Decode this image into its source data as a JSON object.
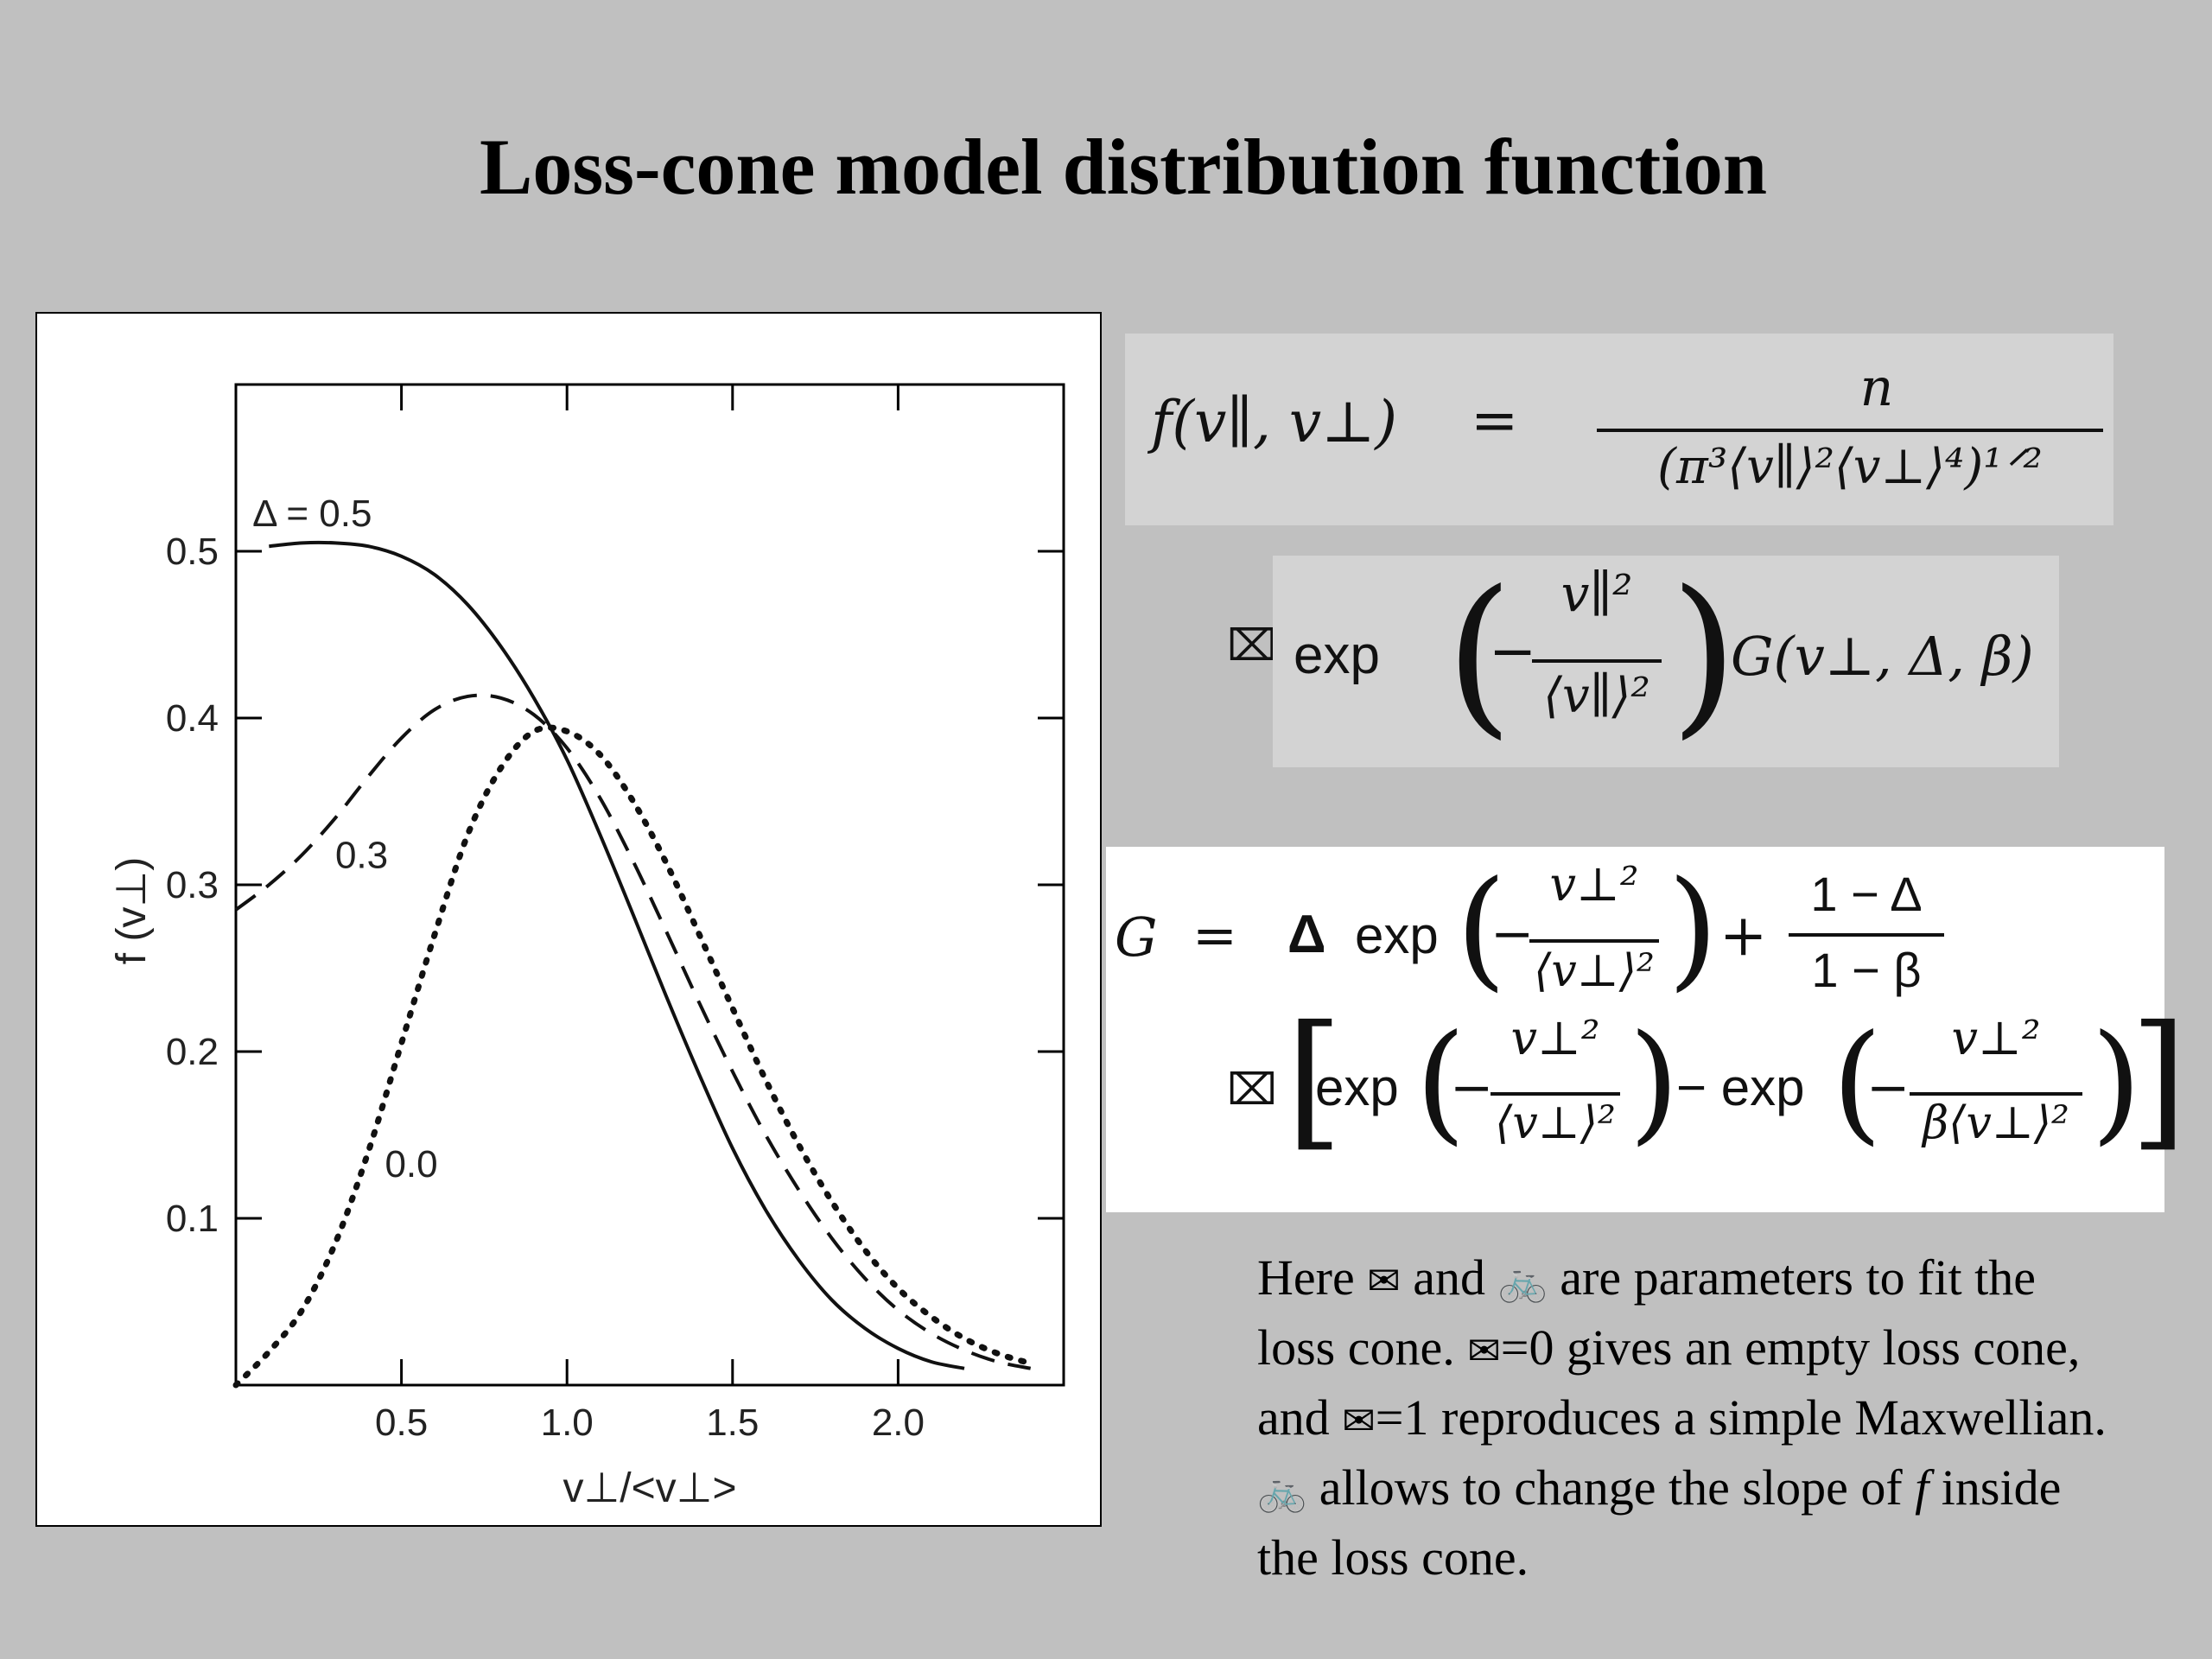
{
  "slide": {
    "title": "Loss-cone model distribution function"
  },
  "chart_data": {
    "type": "line",
    "xlabel": "v⊥/<v⊥>",
    "ylabel": "f (v⊥)",
    "xlim": [
      0,
      2.5
    ],
    "ylim": [
      0,
      0.6
    ],
    "x_ticks": [
      "0.5",
      "1.0",
      "1.5",
      "2.0"
    ],
    "y_ticks": [
      "0.1",
      "0.2",
      "0.3",
      "0.4",
      "0.5"
    ],
    "grid": false,
    "series": [
      {
        "name": "Δ = 0.5",
        "style": "solid",
        "x": [
          0.1,
          0.2,
          0.3,
          0.4,
          0.5,
          0.6,
          0.7,
          0.8,
          0.9,
          1.0,
          1.1,
          1.2,
          1.3,
          1.4,
          1.5,
          1.6,
          1.7,
          1.8,
          1.9,
          2.0,
          2.1,
          2.2
        ],
        "y": [
          0.503,
          0.505,
          0.505,
          0.503,
          0.497,
          0.486,
          0.468,
          0.443,
          0.412,
          0.375,
          0.33,
          0.282,
          0.233,
          0.186,
          0.142,
          0.105,
          0.075,
          0.051,
          0.034,
          0.022,
          0.014,
          0.01
        ]
      },
      {
        "name": "0.3",
        "style": "dashed",
        "x": [
          0.0,
          0.1,
          0.2,
          0.3,
          0.4,
          0.5,
          0.6,
          0.7,
          0.8,
          0.9,
          1.0,
          1.1,
          1.2,
          1.3,
          1.4,
          1.5,
          1.6,
          1.7,
          1.8,
          1.9,
          2.0,
          2.1,
          2.2,
          2.3,
          2.4
        ],
        "y": [
          0.285,
          0.3,
          0.318,
          0.34,
          0.365,
          0.388,
          0.405,
          0.413,
          0.412,
          0.402,
          0.382,
          0.352,
          0.314,
          0.272,
          0.229,
          0.188,
          0.15,
          0.117,
          0.088,
          0.064,
          0.045,
          0.031,
          0.021,
          0.014,
          0.01
        ]
      },
      {
        "name": "0.0",
        "style": "dotted",
        "x": [
          0.0,
          0.1,
          0.2,
          0.3,
          0.4,
          0.5,
          0.6,
          0.7,
          0.8,
          0.9,
          1.0,
          1.1,
          1.2,
          1.3,
          1.4,
          1.5,
          1.6,
          1.7,
          1.8,
          1.9,
          2.0,
          2.1,
          2.2,
          2.3,
          2.4
        ],
        "y": [
          0.0,
          0.02,
          0.045,
          0.085,
          0.14,
          0.205,
          0.27,
          0.33,
          0.37,
          0.392,
          0.392,
          0.378,
          0.35,
          0.313,
          0.27,
          0.226,
          0.183,
          0.144,
          0.11,
          0.081,
          0.058,
          0.041,
          0.028,
          0.019,
          0.013
        ]
      }
    ]
  },
  "equations": {
    "eq1": {
      "lhs": "f(v∥, v⊥)",
      "eq": "=",
      "numerator": "n",
      "denominator": "(π³⟨v∥⟩²⟨v⊥⟩⁴)¹ᐟ²"
    },
    "eq2": {
      "exp": "exp",
      "minus": "−",
      "numerator": "v∥²",
      "denominator": "⟨v∥⟩²",
      "tail": "G(v⊥, Δ, β)"
    },
    "eq3": {
      "G": "G",
      "eq": "=",
      "delta": "Δ",
      "exp": "exp",
      "minus": "−",
      "num1": "v⊥²",
      "den1": "⟨v⊥⟩²",
      "plus": "+",
      "frac_num": "1 − Δ",
      "frac_den": "1 − β",
      "exp2": "exp",
      "num2": "v⊥²",
      "den2": "⟨v⊥⟩²",
      "minus_exp": "− exp",
      "num3": "v⊥²",
      "den3": "β⟨v⊥⟩²"
    }
  },
  "caption": {
    "p1": "Here ",
    "s1": "✉",
    "p2": " and ",
    "s2": "🚲",
    "p3": " are parameters to fit the loss cone. ",
    "s3": "✉",
    "p4": "=0 gives an empty loss cone, and ",
    "s4": "✉",
    "p5": "=1 reproduces a simple Maxwellian. ",
    "s5": "🚲",
    "p6": " allows to change the slope of ",
    "f": "f",
    "p7": " inside the loss cone."
  }
}
